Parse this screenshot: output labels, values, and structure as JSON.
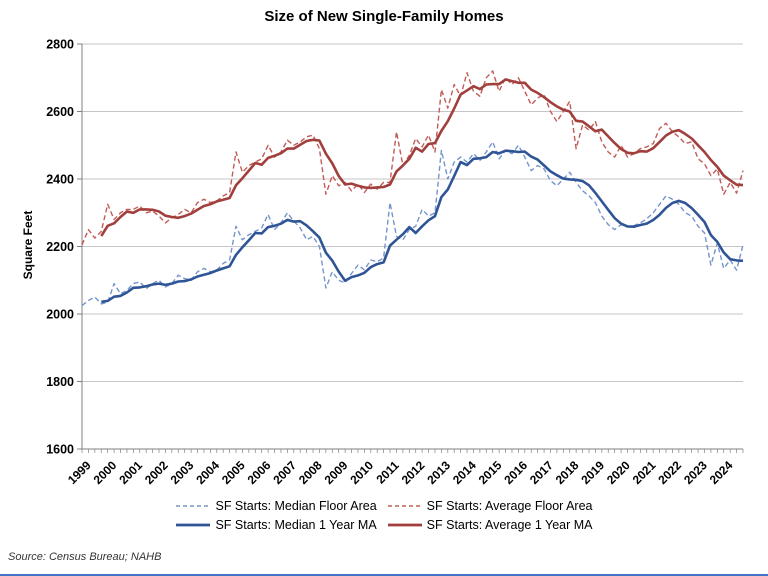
{
  "page": {
    "bottom_border_color": "#4472C4"
  },
  "source_note": "Source: Census Bureau; NAHB",
  "chart_data": {
    "type": "line",
    "title": "Size of New Single-Family Homes",
    "ylabel": "Square Feet",
    "ylim": [
      1600,
      2800
    ],
    "ytick_step": 200,
    "yticks": [
      1600,
      1800,
      2000,
      2200,
      2400,
      2600,
      2800
    ],
    "grid": "horizontal",
    "legend_position": "bottom",
    "frequency": "quarterly",
    "x_years": [
      1999,
      2000,
      2001,
      2002,
      2003,
      2004,
      2005,
      2006,
      2007,
      2008,
      2009,
      2010,
      2011,
      2012,
      2013,
      2014,
      2015,
      2016,
      2017,
      2018,
      2019,
      2020,
      2021,
      2022,
      2023,
      2024
    ],
    "colors": {
      "gridline": "#C6C6C6",
      "axis": "#808080"
    },
    "series": [
      {
        "id": "median-floor-area",
        "name": "SF Starts: Median Floor Area",
        "style": "dashed",
        "color": "#7495CC",
        "values": [
          2025,
          2040,
          2050,
          2030,
          2035,
          2090,
          2060,
          2070,
          2090,
          2095,
          2075,
          2090,
          2100,
          2080,
          2090,
          2115,
          2105,
          2100,
          2125,
          2135,
          2125,
          2130,
          2150,
          2160,
          2260,
          2220,
          2235,
          2245,
          2255,
          2295,
          2250,
          2270,
          2300,
          2275,
          2255,
          2220,
          2230,
          2200,
          2077,
          2125,
          2100,
          2092,
          2120,
          2145,
          2131,
          2160,
          2155,
          2166,
          2330,
          2230,
          2220,
          2250,
          2260,
          2310,
          2290,
          2300,
          2485,
          2400,
          2450,
          2465,
          2450,
          2475,
          2455,
          2480,
          2510,
          2460,
          2485,
          2475,
          2500,
          2465,
          2425,
          2440,
          2430,
          2395,
          2380,
          2400,
          2420,
          2390,
          2365,
          2350,
          2330,
          2290,
          2265,
          2250,
          2265,
          2258,
          2262,
          2270,
          2282,
          2300,
          2325,
          2350,
          2340,
          2325,
          2300,
          2290,
          2260,
          2240,
          2145,
          2210,
          2135,
          2160,
          2130,
          2205
        ]
      },
      {
        "id": "average-floor-area",
        "name": "SF Starts: Average Floor Area",
        "style": "dashed",
        "color": "#C25B57",
        "values": [
          2205,
          2250,
          2225,
          2245,
          2325,
          2280,
          2300,
          2310,
          2310,
          2320,
          2300,
          2305,
          2290,
          2270,
          2285,
          2295,
          2310,
          2300,
          2330,
          2340,
          2330,
          2335,
          2350,
          2360,
          2480,
          2420,
          2440,
          2450,
          2460,
          2500,
          2465,
          2480,
          2515,
          2500,
          2510,
          2525,
          2530,
          2490,
          2355,
          2410,
          2380,
          2390,
          2365,
          2385,
          2360,
          2385,
          2370,
          2390,
          2390,
          2540,
          2440,
          2470,
          2520,
          2495,
          2530,
          2480,
          2665,
          2610,
          2680,
          2645,
          2715,
          2660,
          2645,
          2700,
          2720,
          2660,
          2700,
          2680,
          2700,
          2660,
          2620,
          2640,
          2650,
          2600,
          2570,
          2600,
          2630,
          2490,
          2560,
          2545,
          2570,
          2510,
          2480,
          2465,
          2500,
          2465,
          2475,
          2490,
          2495,
          2505,
          2550,
          2565,
          2540,
          2525,
          2505,
          2510,
          2460,
          2445,
          2410,
          2430,
          2355,
          2390,
          2358,
          2425
        ]
      },
      {
        "id": "median-1-year-ma",
        "name": "SF Starts: Median 1 Year MA",
        "style": "solid",
        "color": "#2F5597",
        "derived_from": 0,
        "derivation": "trailing_4_quarter_mean"
      },
      {
        "id": "average-1-year-ma",
        "name": "SF Starts: Average 1 Year MA",
        "style": "solid",
        "color": "#A13F3D",
        "derived_from": 1,
        "derivation": "trailing_4_quarter_mean"
      }
    ]
  }
}
